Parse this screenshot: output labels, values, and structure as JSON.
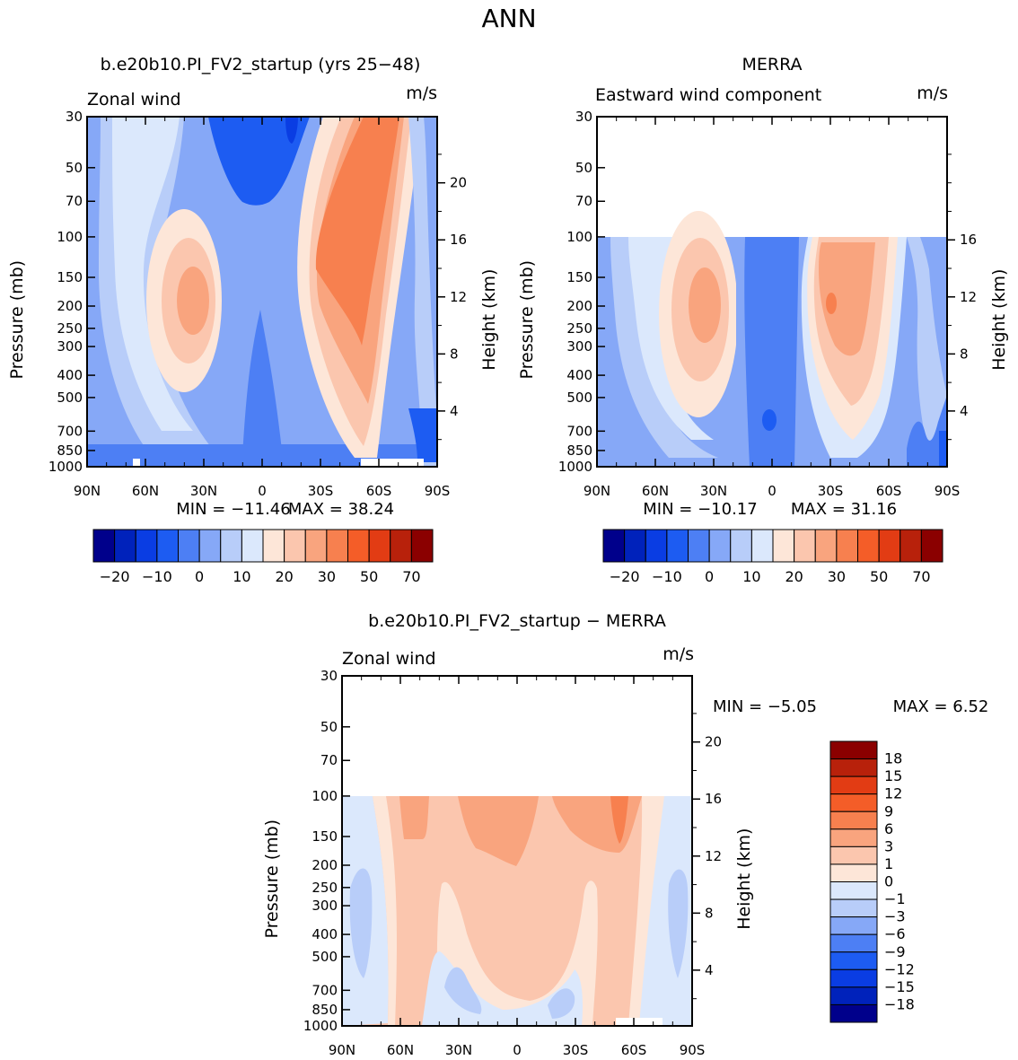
{
  "page_title": "ANN",
  "chart_data": [
    {
      "type": "heatmap",
      "title": "b.e20b10.PI_FV2_startup (yrs 25-48)",
      "variable": "Zonal wind",
      "units": "m/s",
      "ylabel": "Pressure (mb)",
      "ylabel_right": "Height (km)",
      "x_ticks": [
        "90N",
        "60N",
        "30N",
        "0",
        "30S",
        "60S",
        "90S"
      ],
      "y_ticks": [
        30,
        50,
        70,
        100,
        150,
        200,
        250,
        300,
        400,
        500,
        700,
        850,
        1000
      ],
      "height_ticks": [
        4,
        8,
        12,
        16,
        20
      ],
      "min_label": "MIN =  -11.46",
      "max_label": "MAX =   38.24",
      "min": -11.46,
      "max": 38.24,
      "colorbar": {
        "orientation": "horizontal",
        "tick_labels": [
          "-20",
          "-10",
          "0",
          "10",
          "20",
          "30",
          "50",
          "70"
        ],
        "colors": [
          "#00008b",
          "#0022bb",
          "#0a3de3",
          "#1d5cf2",
          "#4d7ff4",
          "#86a8f7",
          "#b8cdf9",
          "#dbe8fc",
          "#fde6d8",
          "#fbc6ae",
          "#f9a47e",
          "#f7804f",
          "#f45d28",
          "#e23c14",
          "#b8210b",
          "#8b0000"
        ]
      },
      "top_pressure_mb": 30
    },
    {
      "type": "heatmap",
      "title": "MERRA",
      "variable": "Eastward wind component",
      "units": "m/s",
      "ylabel": "Pressure (mb)",
      "ylabel_right": "Height (km)",
      "x_ticks": [
        "90N",
        "60N",
        "30N",
        "0",
        "30S",
        "60S",
        "90S"
      ],
      "y_ticks": [
        30,
        50,
        70,
        100,
        150,
        200,
        250,
        300,
        400,
        500,
        700,
        850,
        1000
      ],
      "height_ticks": [
        4,
        8,
        12,
        16
      ],
      "min_label": "MIN =  -10.17",
      "max_label": "MAX =   31.16",
      "min": -10.17,
      "max": 31.16,
      "colorbar": {
        "orientation": "horizontal",
        "tick_labels": [
          "-20",
          "-10",
          "0",
          "10",
          "20",
          "30",
          "50",
          "70"
        ],
        "colors": [
          "#00008b",
          "#0022bb",
          "#0a3de3",
          "#1d5cf2",
          "#4d7ff4",
          "#86a8f7",
          "#b8cdf9",
          "#dbe8fc",
          "#fde6d8",
          "#fbc6ae",
          "#f9a47e",
          "#f7804f",
          "#f45d28",
          "#e23c14",
          "#b8210b",
          "#8b0000"
        ]
      },
      "top_pressure_mb": 100
    },
    {
      "type": "heatmap",
      "title": "b.e20b10.PI_FV2_startup - MERRA",
      "variable": "Zonal wind",
      "units": "m/s",
      "ylabel": "Pressure (mb)",
      "ylabel_right": "Height (km)",
      "x_ticks": [
        "90N",
        "60N",
        "30N",
        "0",
        "30S",
        "60S",
        "90S"
      ],
      "y_ticks": [
        30,
        50,
        70,
        100,
        150,
        200,
        250,
        300,
        400,
        500,
        700,
        850,
        1000
      ],
      "height_ticks": [
        4,
        8,
        12,
        16,
        20
      ],
      "min_label": "MIN =   -5.05",
      "max_label": "MAX =    6.52",
      "min": -5.05,
      "max": 6.52,
      "colorbar": {
        "orientation": "vertical",
        "tick_labels": [
          "18",
          "15",
          "12",
          "9",
          "6",
          "3",
          "1",
          "0",
          "-1",
          "-3",
          "-6",
          "-9",
          "-12",
          "-15",
          "-18"
        ],
        "colors": [
          "#8b0000",
          "#b8210b",
          "#e23c14",
          "#f45d28",
          "#f7804f",
          "#f9a47e",
          "#fbc6ae",
          "#fde6d8",
          "#dbe8fc",
          "#b8cdf9",
          "#86a8f7",
          "#4d7ff4",
          "#1d5cf2",
          "#0a3de3",
          "#0022bb",
          "#00008b"
        ]
      },
      "top_pressure_mb": 100
    }
  ]
}
